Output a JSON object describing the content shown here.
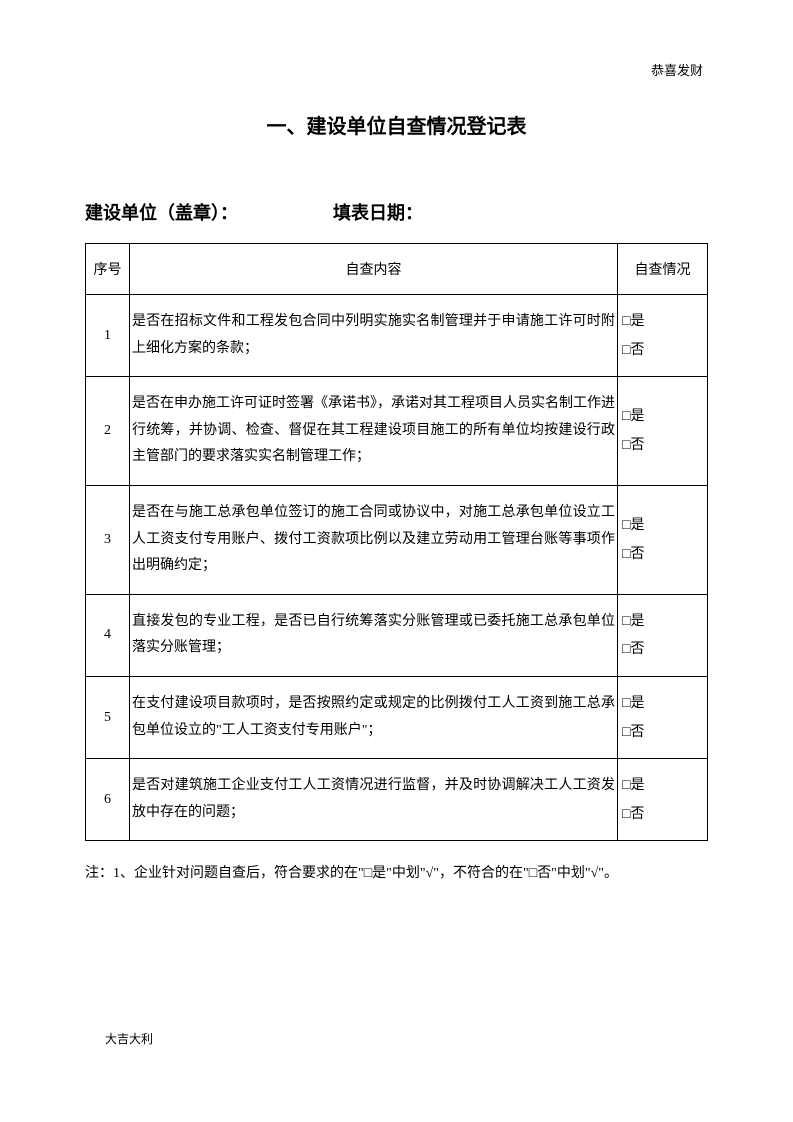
{
  "header": {
    "topRight": "恭喜发财",
    "title": "一、建设单位自查情况登记表"
  },
  "form": {
    "unitLabel": "建设单位（盖章）：",
    "dateLabel": "填表日期："
  },
  "table": {
    "headers": {
      "seq": "序号",
      "content": "自查内容",
      "status": "自查情况"
    },
    "statusOptions": {
      "yes": "是",
      "no": "否",
      "checkbox": "□"
    },
    "rows": [
      {
        "seq": "1",
        "content": "是否在招标文件和工程发包合同中列明实施实名制管理并于申请施工许可时附上细化方案的条款；"
      },
      {
        "seq": "2",
        "content": "是否在申办施工许可证时签署《承诺书》，承诺对其工程项目人员实名制工作进行统筹，并协调、检查、督促在其工程建设项目施工的所有单位均按建设行政主管部门的要求落实实名制管理工作；"
      },
      {
        "seq": "3",
        "content": "是否在与施工总承包单位签订的施工合同或协议中，对施工总承包单位设立工人工资支付专用账户、拨付工资款项比例以及建立劳动用工管理台账等事项作出明确约定；"
      },
      {
        "seq": "4",
        "content": "直接发包的专业工程，是否已自行统筹落实分账管理或已委托施工总承包单位落实分账管理；"
      },
      {
        "seq": "5",
        "content": "在支付建设项目款项时，是否按照约定或规定的比例拨付工人工资到施工总承包单位设立的\"工人工资支付专用账户\"；"
      },
      {
        "seq": "6",
        "content": "是否对建筑施工企业支付工人工资情况进行监督，并及时协调解决工人工资发放中存在的问题；"
      }
    ]
  },
  "note": "注：1、企业针对问题自查后，符合要求的在\"□是\"中划\"√\"，不符合的在\"□否\"中划\"√\"。",
  "footer": {
    "bottomLeft": "大吉大利"
  }
}
